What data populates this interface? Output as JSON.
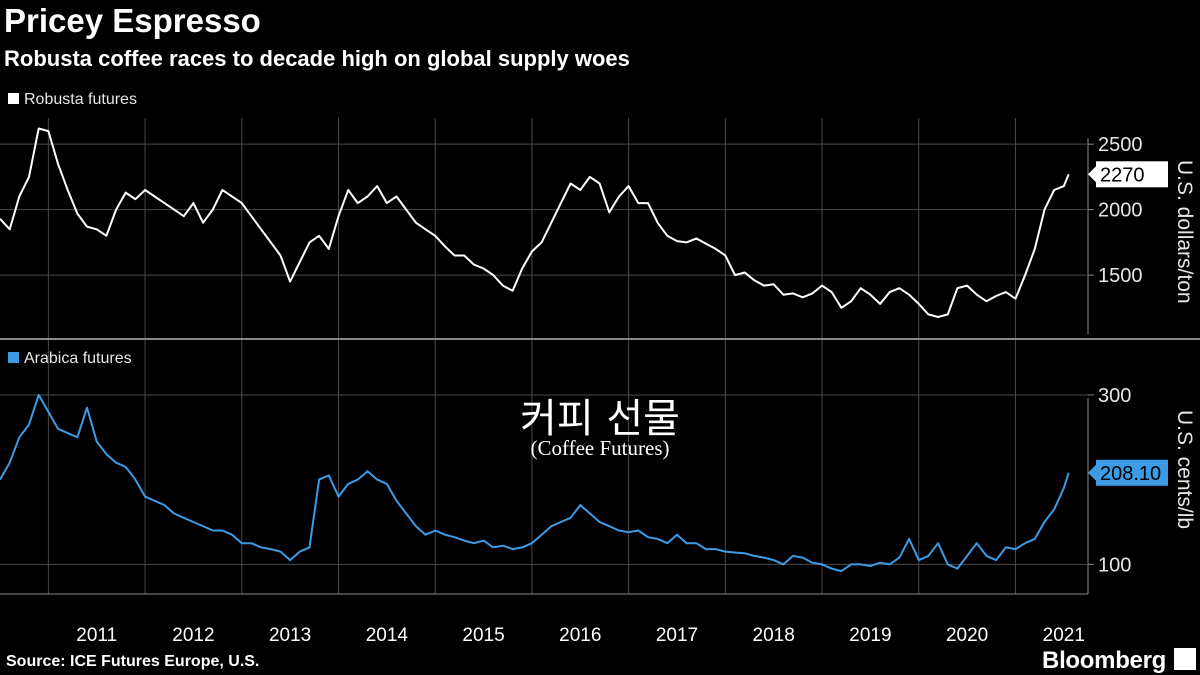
{
  "header": {
    "title": "Pricey Espresso",
    "subtitle": "Robusta coffee races to decade high on global supply woes"
  },
  "overlay": {
    "korean": "커피 선물",
    "english": "(Coffee Futures)"
  },
  "footer": {
    "source": "Source: ICE Futures Europe, U.S.",
    "brand": "Bloomberg"
  },
  "colors": {
    "background": "#000000",
    "robusta": "#ffffff",
    "arabica": "#3d9be6",
    "grid": "#4a4a4a"
  },
  "chart_data": [
    {
      "type": "line",
      "legend": "Robusta futures",
      "ylabel": "U.S. dollars/ton",
      "ylim": [
        1050,
        2700
      ],
      "yticks": [
        1500,
        2000,
        2500
      ],
      "last_value_label": "2270",
      "x_domain": [
        2010.5,
        2021.75
      ],
      "series": [
        {
          "name": "Robusta futures",
          "x": [
            2010.5,
            2010.6,
            2010.7,
            2010.8,
            2010.9,
            2011.0,
            2011.1,
            2011.2,
            2011.3,
            2011.4,
            2011.5,
            2011.6,
            2011.7,
            2011.8,
            2011.9,
            2012.0,
            2012.1,
            2012.2,
            2012.3,
            2012.4,
            2012.5,
            2012.6,
            2012.7,
            2012.8,
            2012.9,
            2013.0,
            2013.1,
            2013.2,
            2013.3,
            2013.4,
            2013.5,
            2013.6,
            2013.7,
            2013.8,
            2013.9,
            2014.0,
            2014.1,
            2014.2,
            2014.3,
            2014.4,
            2014.5,
            2014.6,
            2014.7,
            2014.8,
            2014.9,
            2015.0,
            2015.1,
            2015.2,
            2015.3,
            2015.4,
            2015.5,
            2015.6,
            2015.7,
            2015.8,
            2015.9,
            2016.0,
            2016.1,
            2016.2,
            2016.3,
            2016.4,
            2016.5,
            2016.6,
            2016.7,
            2016.8,
            2016.9,
            2017.0,
            2017.1,
            2017.2,
            2017.3,
            2017.4,
            2017.5,
            2017.6,
            2017.7,
            2017.8,
            2017.9,
            2018.0,
            2018.1,
            2018.2,
            2018.3,
            2018.4,
            2018.5,
            2018.6,
            2018.7,
            2018.8,
            2018.9,
            2019.0,
            2019.1,
            2019.2,
            2019.3,
            2019.4,
            2019.5,
            2019.6,
            2019.7,
            2019.8,
            2019.9,
            2020.0,
            2020.1,
            2020.2,
            2020.3,
            2020.4,
            2020.5,
            2020.6,
            2020.7,
            2020.8,
            2020.9,
            2021.0,
            2021.1,
            2021.2,
            2021.3,
            2021.4,
            2021.5,
            2021.55
          ],
          "values": [
            1930,
            1850,
            2100,
            2250,
            2620,
            2600,
            2350,
            2150,
            1970,
            1870,
            1850,
            1800,
            2000,
            2130,
            2080,
            2150,
            2100,
            2050,
            2000,
            1950,
            2050,
            1900,
            2000,
            2150,
            2100,
            2050,
            1950,
            1850,
            1750,
            1650,
            1450,
            1600,
            1750,
            1800,
            1700,
            1950,
            2150,
            2050,
            2100,
            2180,
            2050,
            2100,
            2000,
            1900,
            1850,
            1800,
            1720,
            1650,
            1650,
            1580,
            1550,
            1500,
            1420,
            1380,
            1550,
            1680,
            1750,
            1900,
            2050,
            2200,
            2150,
            2250,
            2200,
            1980,
            2100,
            2180,
            2050,
            2050,
            1900,
            1800,
            1760,
            1750,
            1780,
            1740,
            1700,
            1650,
            1500,
            1520,
            1460,
            1420,
            1430,
            1350,
            1360,
            1330,
            1360,
            1420,
            1370,
            1250,
            1300,
            1400,
            1350,
            1280,
            1370,
            1400,
            1350,
            1280,
            1200,
            1180,
            1200,
            1400,
            1420,
            1350,
            1300,
            1340,
            1370,
            1320,
            1500,
            1700,
            2000,
            2150,
            2180,
            2270
          ]
        }
      ]
    },
    {
      "type": "line",
      "legend": "Arabica futures",
      "ylabel": "U.S. cents/lb",
      "ylim": [
        65,
        320
      ],
      "yticks": [
        100,
        300
      ],
      "last_value_label": "208.10",
      "x_domain": [
        2010.5,
        2021.75
      ],
      "series": [
        {
          "name": "Arabica futures",
          "x": [
            2010.5,
            2010.6,
            2010.7,
            2010.8,
            2010.9,
            2011.0,
            2011.1,
            2011.2,
            2011.3,
            2011.4,
            2011.5,
            2011.6,
            2011.7,
            2011.8,
            2011.9,
            2012.0,
            2012.1,
            2012.2,
            2012.3,
            2012.4,
            2012.5,
            2012.6,
            2012.7,
            2012.8,
            2012.9,
            2013.0,
            2013.1,
            2013.2,
            2013.3,
            2013.4,
            2013.5,
            2013.6,
            2013.7,
            2013.8,
            2013.9,
            2014.0,
            2014.1,
            2014.2,
            2014.3,
            2014.4,
            2014.5,
            2014.6,
            2014.7,
            2014.8,
            2014.9,
            2015.0,
            2015.1,
            2015.2,
            2015.3,
            2015.4,
            2015.5,
            2015.6,
            2015.7,
            2015.8,
            2015.9,
            2016.0,
            2016.1,
            2016.2,
            2016.3,
            2016.4,
            2016.5,
            2016.6,
            2016.7,
            2016.8,
            2016.9,
            2017.0,
            2017.1,
            2017.2,
            2017.3,
            2017.4,
            2017.5,
            2017.6,
            2017.7,
            2017.8,
            2017.9,
            2018.0,
            2018.1,
            2018.2,
            2018.3,
            2018.4,
            2018.5,
            2018.6,
            2018.7,
            2018.8,
            2018.9,
            2019.0,
            2019.1,
            2019.2,
            2019.3,
            2019.4,
            2019.5,
            2019.6,
            2019.7,
            2019.8,
            2019.9,
            2020.0,
            2020.1,
            2020.2,
            2020.3,
            2020.4,
            2020.5,
            2020.6,
            2020.7,
            2020.8,
            2020.9,
            2021.0,
            2021.1,
            2021.2,
            2021.3,
            2021.4,
            2021.5,
            2021.55
          ],
          "values": [
            200,
            220,
            250,
            265,
            300,
            280,
            260,
            255,
            250,
            285,
            245,
            230,
            220,
            215,
            200,
            180,
            175,
            170,
            160,
            155,
            150,
            145,
            140,
            140,
            135,
            125,
            125,
            120,
            118,
            115,
            105,
            115,
            120,
            200,
            205,
            180,
            195,
            200,
            210,
            200,
            195,
            175,
            160,
            145,
            135,
            140,
            135,
            132,
            128,
            125,
            128,
            120,
            122,
            118,
            120,
            125,
            135,
            145,
            150,
            155,
            170,
            160,
            150,
            145,
            140,
            138,
            140,
            132,
            130,
            125,
            135,
            125,
            125,
            118,
            118,
            115,
            114,
            113,
            110,
            108,
            105,
            100,
            110,
            108,
            102,
            100,
            95,
            92,
            100,
            100,
            98,
            102,
            100,
            108,
            130,
            105,
            110,
            125,
            100,
            95,
            110,
            125,
            110,
            105,
            120,
            118,
            125,
            130,
            150,
            165,
            190,
            208.1
          ]
        }
      ]
    }
  ],
  "x_axis": {
    "tick_labels": [
      "2011",
      "2012",
      "2013",
      "2014",
      "2015",
      "2016",
      "2017",
      "2018",
      "2019",
      "2020",
      "2021"
    ]
  }
}
